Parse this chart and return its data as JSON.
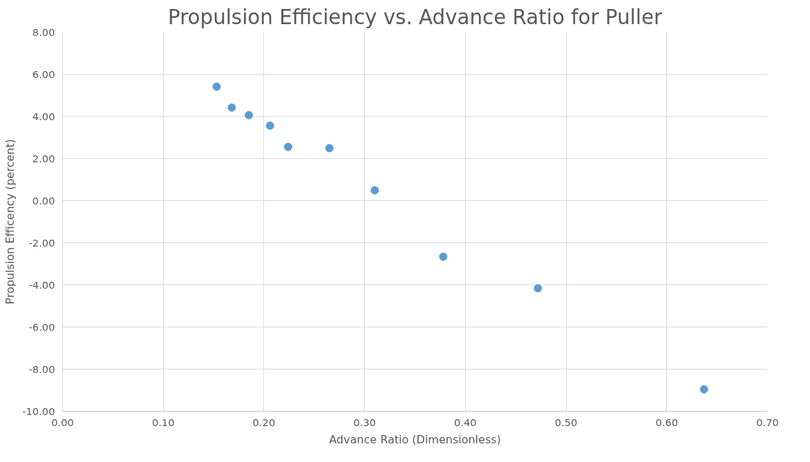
{
  "chart_data": {
    "type": "scatter",
    "title": "Propulsion Efficiency vs. Advance Ratio for Puller",
    "xlabel": "Advance Ratio (Dimensionless)",
    "ylabel": "Propulsion Efficency (percent)",
    "x": [
      0.153,
      0.168,
      0.185,
      0.206,
      0.224,
      0.265,
      0.31,
      0.378,
      0.472,
      0.637
    ],
    "series": [
      {
        "color": "#5b9bd5",
        "values": [
          5.41,
          4.42,
          4.06,
          3.56,
          2.55,
          2.49,
          0.49,
          -2.66,
          -4.16,
          -8.96
        ]
      }
    ],
    "xlim": [
      0,
      0.7
    ],
    "ylim": [
      -10,
      8
    ],
    "xticks": [
      {
        "value": 0,
        "label": "0.00"
      },
      {
        "value": 0.1,
        "label": "0.10"
      },
      {
        "value": 0.2,
        "label": "0.20"
      },
      {
        "value": 0.3,
        "label": "0.30"
      },
      {
        "value": 0.4,
        "label": "0.40"
      },
      {
        "value": 0.5,
        "label": "0.50"
      },
      {
        "value": 0.6,
        "label": "0.60"
      },
      {
        "value": 0.7,
        "label": "0.70"
      }
    ],
    "yticks": [
      {
        "value": -10,
        "label": "-10.00"
      },
      {
        "value": -8,
        "label": "-8.00"
      },
      {
        "value": -6,
        "label": "-6.00"
      },
      {
        "value": -4,
        "label": "-4.00"
      },
      {
        "value": -2,
        "label": "-2.00"
      },
      {
        "value": 0,
        "label": "0.00"
      },
      {
        "value": 2,
        "label": "2.00"
      },
      {
        "value": 4,
        "label": "4.00"
      },
      {
        "value": 6,
        "label": "6.00"
      },
      {
        "value": 8,
        "label": "8.00"
      }
    ],
    "grid": true,
    "marker": "circle"
  }
}
